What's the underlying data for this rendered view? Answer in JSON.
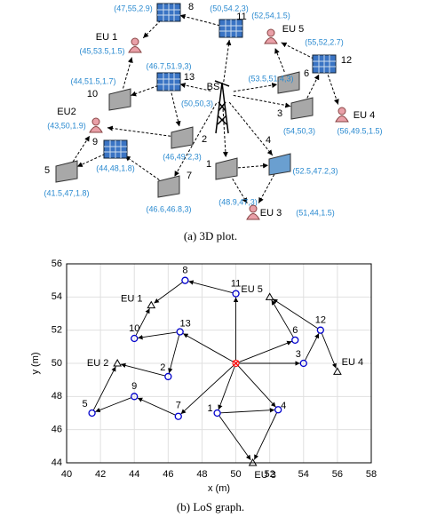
{
  "diagram": {
    "caption": "(a) 3D plot.",
    "nodes": [
      {
        "label": "1",
        "coords": "(48.9,47,3)"
      },
      {
        "label": "2",
        "coords": "(46,49.2,3)"
      },
      {
        "label": "3",
        "coords": "(54,50,3)"
      },
      {
        "label": "4",
        "coords": "(52.5,47.2,3)"
      },
      {
        "label": "5",
        "coords": "(41.5,47,1.8)"
      },
      {
        "label": "6",
        "coords": "(53.5,51.4,3)"
      },
      {
        "label": "7",
        "coords": "(46.6,46.8,3)"
      },
      {
        "label": "8",
        "coords": "(47,55,2.9)"
      },
      {
        "label": "9",
        "coords": "(44,48,1.8)"
      },
      {
        "label": "10",
        "coords": "(44,51.5,1.7)"
      },
      {
        "label": "11",
        "coords": "(50,54.2,3)"
      },
      {
        "label": "12",
        "coords": "(55,52,2.7)"
      },
      {
        "label": "13",
        "coords": "(46.7,51.9,3)"
      },
      {
        "label": "EU 1",
        "coords": "(45,53.5,1.5)"
      },
      {
        "label": "EU2",
        "coords": "(43,50,1.9)"
      },
      {
        "label": "EU 3",
        "coords": "(51,44,1.5)"
      },
      {
        "label": "EU 4",
        "coords": "(56,49.5,1.5)"
      },
      {
        "label": "EU 5",
        "coords": "(52,54,1.5)"
      },
      {
        "label": "BS",
        "coords": "(50,50,3)"
      }
    ]
  },
  "chart_data": {
    "type": "scatter",
    "caption": "(b) LoS graph.",
    "xlabel": "x (m)",
    "ylabel": "y (m)",
    "xlim": [
      40,
      58
    ],
    "ylim": [
      44,
      56
    ],
    "xticks": [
      40,
      42,
      44,
      46,
      48,
      50,
      52,
      54,
      56,
      58
    ],
    "yticks": [
      44,
      46,
      48,
      50,
      52,
      54,
      56
    ],
    "grid": true,
    "relays": {
      "color": "#0000cc",
      "labels": [
        "1",
        "2",
        "3",
        "4",
        "5",
        "6",
        "7",
        "8",
        "9",
        "10",
        "11",
        "12",
        "13"
      ],
      "x": [
        48.9,
        46,
        54,
        52.5,
        41.5,
        53.5,
        46.6,
        47,
        44,
        44,
        50,
        55,
        46.7
      ],
      "y": [
        47,
        49.2,
        50,
        47.2,
        47,
        51.4,
        46.8,
        55,
        48,
        51.5,
        54.2,
        52,
        51.9
      ]
    },
    "users": {
      "color": "#000000",
      "labels": [
        "EU 1",
        "EU 2",
        "EU 3",
        "EU 4",
        "EU 5"
      ],
      "x": [
        45,
        43,
        51,
        56,
        52
      ],
      "y": [
        53.5,
        50,
        44,
        49.5,
        54
      ]
    },
    "bs": {
      "color": "#ff0000",
      "x": [
        50
      ],
      "y": [
        50
      ]
    }
  }
}
